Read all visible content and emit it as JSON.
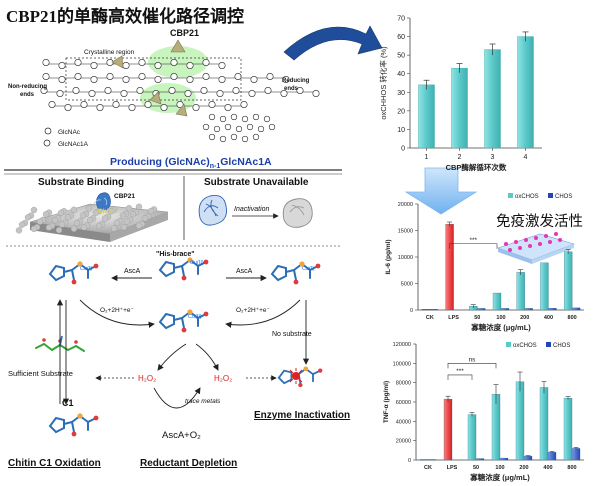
{
  "title": "CBP21的单酶高效催化路径调控",
  "scheme": {
    "enzyme_label": "CBP21",
    "crystalline": "Crystalline region",
    "nonreducing": [
      "Non-reducing",
      "ends"
    ],
    "reducing": [
      "Reducing",
      "ends"
    ],
    "legend_glcnac": "GlcNAc",
    "legend_glcnac1a": "GlcNAc1A",
    "producing_main": "Producing (GlcNAc)",
    "producing_sub": "n-1",
    "producing_tail": "GlcNAc1A",
    "substrate_binding": "Substrate Binding",
    "substrate_unavailable": "Substrate Unavailable",
    "binding_enzyme": "CBP21",
    "binding_chitin": "Chitin",
    "inactivation": "Inactivation",
    "his_brace": "\"His-brace\"",
    "cu_i": "Cu(I)",
    "cu_ii": "Cu(II)",
    "asca_left": "AscA",
    "asca_right": "AscA",
    "o2_left": "O₂+2H⁺+e⁻",
    "o2_right": "O₂+2H⁺+e⁻",
    "no_substrate": "No substrate",
    "sufficient": "Sufficient Substrate",
    "h2o2_left": "H₂O₂",
    "h2o2_right": "H₂O₂",
    "c1": "C1",
    "trace_metals": "trace metals",
    "asca_o2": "AscA+O₂",
    "chitin_oxidation": "Chitin C1 Oxidation",
    "reductant_depletion": "Reductant Depletion",
    "enzyme_inactivation": "Enzyme Inactivation"
  },
  "annotation_text": "免疫激发活性",
  "chart_data": [
    {
      "type": "bar",
      "ylabel": "oxCHHOS 转化率 (%)",
      "xlabel": "CBP酶解循环次数",
      "categories": [
        "1",
        "2",
        "3",
        "4"
      ],
      "values": [
        34,
        43,
        53,
        60
      ],
      "errors": [
        2.5,
        2.5,
        3,
        2.5
      ],
      "ylim": [
        0,
        70
      ],
      "yticks": [
        "0",
        "10",
        "20",
        "30",
        "40",
        "50",
        "60",
        "70"
      ],
      "color": "#5fd0d0"
    },
    {
      "type": "bar",
      "ylabel": "IL-6 (pg/ml)",
      "xlabel": "寡糖浓度 (μg/mL)",
      "categories": [
        "CK",
        "LPS",
        "50",
        "100",
        "200",
        "400",
        "800"
      ],
      "series": [
        {
          "name": "oxCHOS",
          "values": [
            120,
            16200,
            700,
            3200,
            7100,
            8900,
            11000
          ],
          "errors": [
            0,
            400,
            300,
            0,
            500,
            0,
            400
          ]
        },
        {
          "name": "CHOS",
          "values": [
            120,
            0,
            300,
            300,
            300,
            350,
            400
          ],
          "errors": [
            0,
            0,
            0,
            0,
            0,
            0,
            0
          ]
        }
      ],
      "ylim": [
        0,
        20000
      ],
      "yticks": [
        "0",
        "5000",
        "10000",
        "15000",
        "20000"
      ],
      "significance": "***"
    },
    {
      "type": "bar",
      "ylabel": "TNF-α (pg/ml)",
      "xlabel": "寡糖浓度 (μg/mL)",
      "categories": [
        "CK",
        "LPS",
        "50",
        "100",
        "200",
        "400",
        "800"
      ],
      "series": [
        {
          "name": "oxCHOS",
          "values": [
            500,
            63000,
            47000,
            68000,
            81000,
            75000,
            64000
          ],
          "errors": [
            0,
            3000,
            2000,
            10000,
            10000,
            6000,
            1500
          ]
        },
        {
          "name": "CHOS",
          "values": [
            500,
            0,
            1500,
            2000,
            4000,
            8000,
            12000
          ],
          "errors": [
            0,
            0,
            0,
            0,
            500,
            800,
            1000
          ]
        }
      ],
      "ylim": [
        0,
        120000
      ],
      "yticks": [
        "0",
        "20000",
        "40000",
        "60000",
        "80000",
        "100000",
        "120000"
      ],
      "significance": [
        "***",
        "ns"
      ]
    }
  ]
}
